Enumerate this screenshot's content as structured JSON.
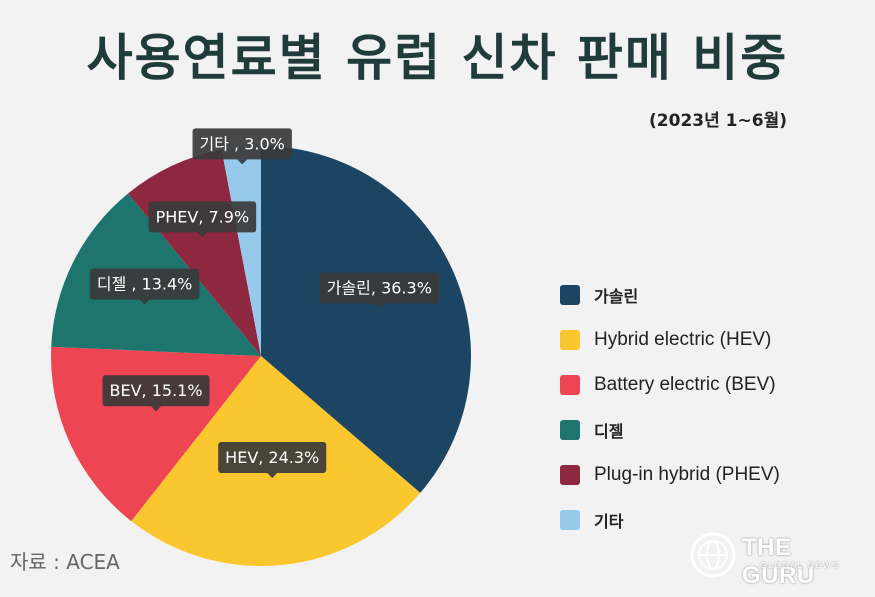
{
  "title": "사용연료별 유럽 신차 판매 비중",
  "subtitle": "(2023년 1~6월)",
  "source": "자료 : ACEA",
  "logo": {
    "name": "THE GURU",
    "tagline": "GLOBAL NEWS"
  },
  "chart_data": {
    "type": "pie",
    "title": "사용연료별 유럽 신차 판매 비중",
    "subtitle": "(2023년 1~6월)",
    "unit": "%",
    "start": "12 o'clock",
    "direction": "clockwise",
    "legend_placement": "right",
    "slices": [
      {
        "legend": "가솔린",
        "tooltip": "가솔린, 36.3%",
        "value": 36.3,
        "color": "#1b4562"
      },
      {
        "legend": "Hybrid electric (HEV)",
        "tooltip": "HEV, 24.3%",
        "value": 24.3,
        "color": "#fbc72e"
      },
      {
        "legend": "Battery electric (BEV)",
        "tooltip": "BEV, 15.1%",
        "value": 15.1,
        "color": "#ee4553"
      },
      {
        "legend": "디젤",
        "tooltip": "디젤 , 13.4%",
        "value": 13.4,
        "color": "#1d756e"
      },
      {
        "legend": "Plug-in hybrid (PHEV)",
        "tooltip": "PHEV, 7.9%",
        "value": 7.9,
        "color": "#8e2841"
      },
      {
        "legend": "기타",
        "tooltip": "기타 , 3.0%",
        "value": 3.0,
        "color": "#97c9ea"
      }
    ]
  }
}
